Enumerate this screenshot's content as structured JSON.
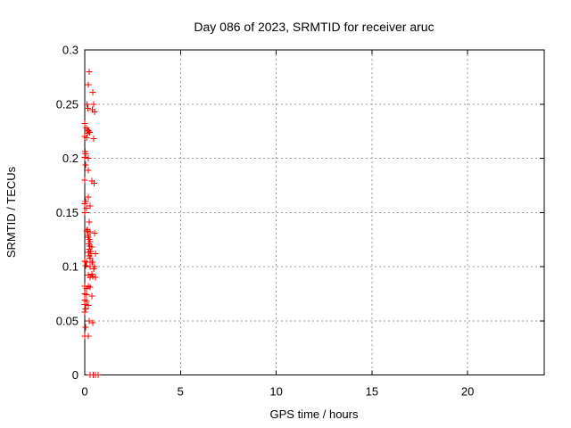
{
  "page": {
    "background_color": "#ffffff",
    "text_color": "#000000"
  },
  "colors": {
    "marker": "#ff0000",
    "axis": "#000000",
    "grid": "#999999",
    "background": "#ffffff"
  },
  "chart_data": {
    "type": "scatter",
    "title": "Day 086 of 2023, SRMTID for receiver aruc",
    "xlabel": "GPS time / hours",
    "ylabel": "SRMTID / TECUs",
    "xlim": [
      0,
      24
    ],
    "ylim": [
      0,
      0.3
    ],
    "xticks": {
      "values": [
        0,
        5,
        10,
        15,
        20
      ],
      "labels": [
        "0",
        "5",
        "10",
        "15",
        "20"
      ]
    },
    "yticks": {
      "values": [
        0,
        0.05,
        0.1,
        0.15,
        0.2,
        0.25,
        0.3
      ],
      "labels": [
        "0",
        "0.05",
        "0.1",
        "0.15",
        "0.2",
        "0.25",
        "0.3"
      ]
    },
    "grid": true,
    "grid_style": "dashed",
    "legend": "none",
    "marker": {
      "shape": "plus",
      "color": "#ff0000",
      "size": 7
    },
    "series": [
      {
        "name": "SRMTID",
        "points": [
          [
            0.23,
            0.28
          ],
          [
            0.19,
            0.268
          ],
          [
            0.42,
            0.261
          ],
          [
            0.11,
            0.25
          ],
          [
            0.47,
            0.25
          ],
          [
            0.16,
            0.246
          ],
          [
            0.39,
            0.245
          ],
          [
            0.51,
            0.243
          ],
          [
            0.0,
            0.232
          ],
          [
            0.09,
            0.228
          ],
          [
            0.16,
            0.226
          ],
          [
            0.21,
            0.225
          ],
          [
            0.26,
            0.224
          ],
          [
            0.14,
            0.223
          ],
          [
            0.0,
            0.22
          ],
          [
            0.09,
            0.219
          ],
          [
            0.47,
            0.218
          ],
          [
            0.02,
            0.206
          ],
          [
            0.05,
            0.204
          ],
          [
            0.0,
            0.201
          ],
          [
            0.19,
            0.2
          ],
          [
            0.05,
            0.194
          ],
          [
            0.19,
            0.189
          ],
          [
            0.0,
            0.18
          ],
          [
            0.37,
            0.179
          ],
          [
            0.49,
            0.177
          ],
          [
            0.19,
            0.164
          ],
          [
            0.05,
            0.16
          ],
          [
            0.0,
            0.158
          ],
          [
            0.28,
            0.156
          ],
          [
            0.09,
            0.154
          ],
          [
            0.0,
            0.15
          ],
          [
            0.23,
            0.141
          ],
          [
            0.14,
            0.134
          ],
          [
            0.09,
            0.133
          ],
          [
            0.28,
            0.132
          ],
          [
            0.51,
            0.131
          ],
          [
            0.16,
            0.129
          ],
          [
            0.19,
            0.127
          ],
          [
            0.23,
            0.125
          ],
          [
            0.28,
            0.123
          ],
          [
            0.21,
            0.121
          ],
          [
            0.26,
            0.119
          ],
          [
            0.37,
            0.118
          ],
          [
            0.23,
            0.116
          ],
          [
            0.3,
            0.114
          ],
          [
            0.19,
            0.113
          ],
          [
            0.33,
            0.112
          ],
          [
            0.56,
            0.112
          ],
          [
            0.23,
            0.11
          ],
          [
            0.28,
            0.108
          ],
          [
            0.0,
            0.105
          ],
          [
            0.09,
            0.104
          ],
          [
            0.28,
            0.104
          ],
          [
            0.37,
            0.104
          ],
          [
            0.42,
            0.104
          ],
          [
            0.05,
            0.101
          ],
          [
            0.28,
            0.1
          ],
          [
            0.51,
            0.1
          ],
          [
            0.47,
            0.098
          ],
          [
            0.37,
            0.093
          ],
          [
            0.19,
            0.092
          ],
          [
            0.42,
            0.091
          ],
          [
            0.28,
            0.09
          ],
          [
            0.56,
            0.09
          ],
          [
            0.0,
            0.082
          ],
          [
            0.19,
            0.082
          ],
          [
            0.28,
            0.081
          ],
          [
            0.09,
            0.08
          ],
          [
            0.0,
            0.075
          ],
          [
            0.09,
            0.074
          ],
          [
            0.37,
            0.073
          ],
          [
            0.0,
            0.069
          ],
          [
            0.09,
            0.068
          ],
          [
            0.0,
            0.065
          ],
          [
            0.19,
            0.064
          ],
          [
            0.05,
            0.061
          ],
          [
            0.0,
            0.058
          ],
          [
            0.23,
            0.05
          ],
          [
            0.42,
            0.048
          ],
          [
            0.05,
            0.044
          ],
          [
            0.0,
            0.036
          ],
          [
            0.19,
            0.036
          ],
          [
            0.28,
            0.0
          ],
          [
            0.44,
            0.0
          ],
          [
            0.56,
            0.0
          ],
          [
            0.7,
            0.0
          ]
        ]
      }
    ]
  }
}
